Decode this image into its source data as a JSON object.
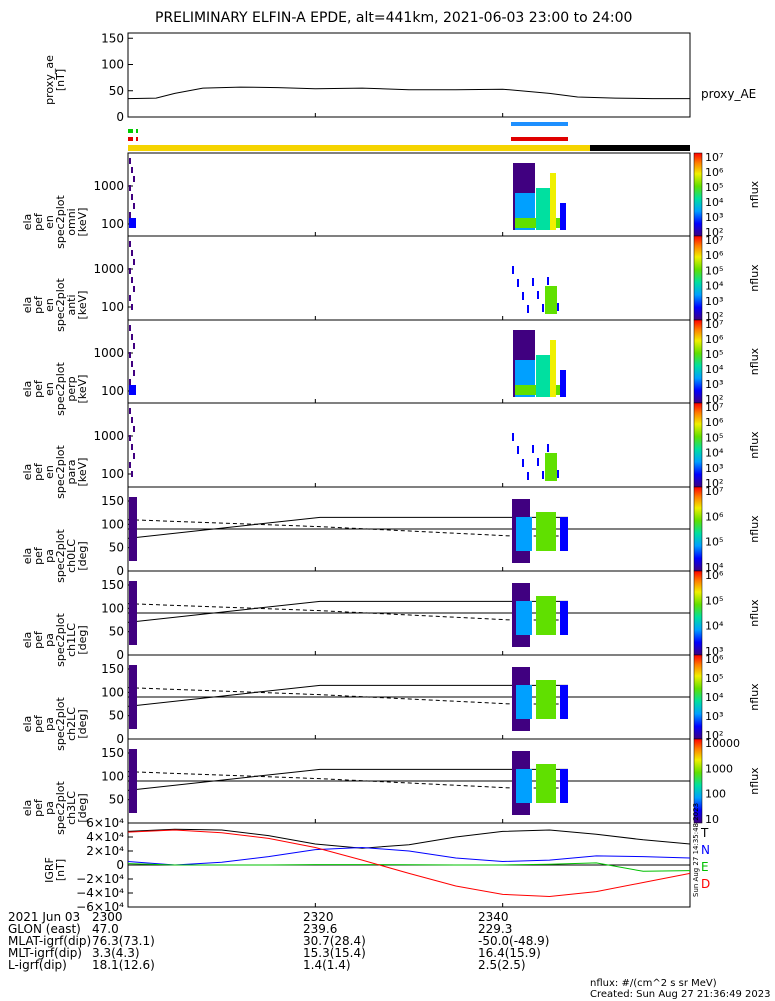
{
  "title": "PRELIMINARY ELFIN-A EPDE, alt=441km, 2021-06-03 23:00 to 24:00",
  "proxy_ae": {
    "ylabel": "proxy_ae\n[nT]",
    "series_label": "proxy_AE",
    "ticks": [
      "150",
      "100",
      "50",
      "0"
    ],
    "ylim": [
      0,
      160
    ]
  },
  "spec_panels": [
    {
      "ylabel": "ela\npef\nen\nspec2plot\nomni\n[keV]",
      "ticks": [
        "1000",
        "100"
      ],
      "colorbar": [
        "10^7",
        "10^6",
        "10^5",
        "10^4",
        "10^3",
        "10^2"
      ],
      "cb_label": "nflux"
    },
    {
      "ylabel": "ela\npef\nen\nspec2plot\nanti\n[keV]",
      "ticks": [
        "1000",
        "100"
      ],
      "colorbar": [
        "10^7",
        "10^6",
        "10^5",
        "10^4",
        "10^3",
        "10^2"
      ],
      "cb_label": "nflux"
    },
    {
      "ylabel": "ela\npef\nen\nspec2plot\nperp\n[keV]",
      "ticks": [
        "1000",
        "100"
      ],
      "colorbar": [
        "10^7",
        "10^6",
        "10^5",
        "10^4",
        "10^3",
        "10^2"
      ],
      "cb_label": "nflux"
    },
    {
      "ylabel": "ela\npef\nen\nspec2plot\npara\n[keV]",
      "ticks": [
        "1000",
        "100"
      ],
      "colorbar": [
        "10^7",
        "10^6",
        "10^5",
        "10^4",
        "10^3",
        "10^2"
      ],
      "cb_label": "nflux"
    }
  ],
  "pa_panels": [
    {
      "ylabel": "ela\npef\npa\nspec2plot\nch0LC\n[deg]",
      "ticks": [
        "150",
        "100",
        "50",
        "0"
      ],
      "colorbar": [
        "10^7",
        "10^6",
        "10^5",
        "10^4"
      ],
      "cb_label": "nflux"
    },
    {
      "ylabel": "ela\npef\npa\nspec2plot\nch1LC\n[deg]",
      "ticks": [
        "150",
        "100",
        "50",
        "0"
      ],
      "colorbar": [
        "10^6",
        "10^5",
        "10^4",
        "10^3"
      ],
      "cb_label": "nflux"
    },
    {
      "ylabel": "ela\npef\npa\nspec2plot\nch2LC\n[deg]",
      "ticks": [
        "150",
        "100",
        "50",
        "0"
      ],
      "colorbar": [
        "10^6",
        "10^5",
        "10^4",
        "10^3",
        "10^2"
      ],
      "cb_label": "nflux"
    },
    {
      "ylabel": "ela\npef\npa\nspec2plot\nch3LC\n[deg]",
      "ticks": [
        "150",
        "100",
        "50"
      ],
      "colorbar": [
        "10000",
        "1000",
        "100",
        "10"
      ],
      "cb_label": "nflux"
    }
  ],
  "igrf": {
    "ylabel": "IGRF\n[nT]",
    "ticks": [
      "6×10^4",
      "4×10^4",
      "2×10^4",
      "0",
      "−2×10^4",
      "−4×10^4",
      "−6×10^4"
    ],
    "legend": [
      {
        "name": "T",
        "color": "#000000"
      },
      {
        "name": "N",
        "color": "#0000ff"
      },
      {
        "name": "E",
        "color": "#00c000"
      },
      {
        "name": "D",
        "color": "#ff0000"
      }
    ]
  },
  "side_stamp": "Sun Aug 27 14:35:48 2023",
  "footer": {
    "rows": [
      {
        "label": "2021 Jun 03",
        "values": [
          "2300",
          "2320",
          "2340"
        ]
      },
      {
        "label": "GLON (east)",
        "values": [
          "47.0",
          "239.6",
          "229.3"
        ]
      },
      {
        "label": "MLAT-igrf(dip)",
        "values": [
          "76.3(73.1)",
          "30.7(28.4)",
          "-50.0(-48.9)"
        ]
      },
      {
        "label": "MLT-igrf(dip)",
        "values": [
          "3.3(4.3)",
          "15.3(15.4)",
          "16.4(15.9)"
        ]
      },
      {
        "label": "L-igrf(dip)",
        "values": [
          "18.1(12.6)",
          "1.4(1.4)",
          "2.5(2.5)"
        ]
      }
    ],
    "units_note": "nflux: #/(cm^2 s sr MeV)",
    "created": "Created: Sun Aug 27 21:36:49 2023"
  },
  "colors": {
    "orbit_bar_yellow": "#f5d400",
    "orbit_bar_black": "#000000",
    "marker_blue": "#1e90ff",
    "marker_red": "#e00000",
    "marker_green": "#00cc00"
  },
  "chart_data": {
    "type": "line",
    "title": "PRELIMINARY ELFIN-A EPDE, alt=441km, 2021-06-03 23:00 to 24:00",
    "x_ticks": [
      "2300",
      "2320",
      "2340"
    ],
    "xlim_minutes": [
      0,
      60
    ],
    "proxy_ae": {
      "x_minutes": [
        0,
        3,
        5,
        8,
        12,
        16,
        20,
        25,
        30,
        35,
        40,
        45,
        48,
        52,
        56,
        60
      ],
      "values": [
        35,
        36,
        45,
        55,
        57,
        56,
        54,
        55,
        52,
        52,
        53,
        45,
        38,
        36,
        35,
        35
      ]
    },
    "igrf": {
      "x_minutes": [
        0,
        5,
        10,
        15,
        20,
        25,
        30,
        35,
        40,
        45,
        50,
        55,
        60
      ],
      "T": [
        48000,
        51000,
        50000,
        42000,
        30000,
        24000,
        29000,
        40000,
        48000,
        50000,
        44000,
        36000,
        30000
      ],
      "N": [
        5000,
        0,
        4000,
        12000,
        22000,
        25000,
        20000,
        10000,
        5000,
        7000,
        13000,
        12000,
        10000
      ],
      "E": [
        2000,
        0,
        0,
        0,
        500,
        500,
        300,
        0,
        0,
        1000,
        3000,
        -9000,
        -8000
      ],
      "D": [
        47000,
        50000,
        46000,
        38000,
        25000,
        7000,
        -12000,
        -30000,
        -42000,
        -45000,
        -38000,
        -25000,
        -12000
      ]
    },
    "ylim_igrf": [
      -60000,
      60000
    ]
  }
}
